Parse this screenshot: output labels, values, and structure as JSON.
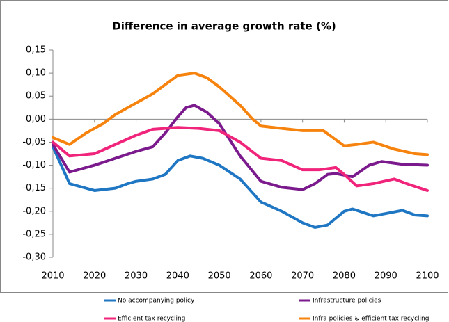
{
  "chart_data": {
    "type": "line",
    "title": "Difference in average growth rate (%)",
    "xlim": [
      2010,
      2100
    ],
    "xticks": [
      2010,
      2020,
      2030,
      2040,
      2050,
      2060,
      2070,
      2080,
      2090,
      2100
    ],
    "ylim": [
      -0.3,
      0.15
    ],
    "yticks": [
      {
        "value": -0.3,
        "label": "-0,30"
      },
      {
        "value": -0.25,
        "label": "-0,25"
      },
      {
        "value": -0.2,
        "label": "-0,20"
      },
      {
        "value": -0.15,
        "label": "-0,15"
      },
      {
        "value": -0.1,
        "label": "-0,10"
      },
      {
        "value": -0.05,
        "label": "-0,05"
      },
      {
        "value": 0,
        "label": "0,00"
      },
      {
        "value": 0.05,
        "label": "0,05"
      },
      {
        "value": 0.1,
        "label": "0,10"
      },
      {
        "value": 0.15,
        "label": "0,15"
      }
    ],
    "grid": false,
    "legend": "bottom",
    "series": [
      {
        "name": "No accompanying policy",
        "color": "#1f77c4",
        "x": [
          2010,
          2014,
          2020,
          2025,
          2028,
          2030,
          2034,
          2037,
          2040,
          2043,
          2046,
          2050,
          2055,
          2060,
          2065,
          2070,
          2073,
          2076,
          2080,
          2082,
          2087,
          2090,
          2094,
          2097,
          2100
        ],
        "values": [
          -0.06,
          -0.14,
          -0.155,
          -0.15,
          -0.14,
          -0.135,
          -0.13,
          -0.12,
          -0.09,
          -0.08,
          -0.085,
          -0.1,
          -0.13,
          -0.18,
          -0.2,
          -0.225,
          -0.235,
          -0.23,
          -0.2,
          -0.195,
          -0.21,
          -0.205,
          -0.198,
          -0.208,
          -0.21
        ]
      },
      {
        "name": "Infrastructure policies",
        "color": "#7b1a8c",
        "x": [
          2010,
          2014,
          2020,
          2025,
          2030,
          2034,
          2037,
          2040,
          2042,
          2044,
          2047,
          2050,
          2055,
          2060,
          2065,
          2070,
          2073,
          2076,
          2078,
          2082,
          2086,
          2089,
          2094,
          2100
        ],
        "values": [
          -0.055,
          -0.115,
          -0.1,
          -0.085,
          -0.07,
          -0.06,
          -0.03,
          0.005,
          0.025,
          0.03,
          0.015,
          -0.01,
          -0.08,
          -0.135,
          -0.148,
          -0.153,
          -0.14,
          -0.12,
          -0.118,
          -0.125,
          -0.1,
          -0.092,
          -0.098,
          -0.1
        ]
      },
      {
        "name": "Efficient tax recycling",
        "color": "#f0247a",
        "x": [
          2010,
          2014,
          2020,
          2025,
          2030,
          2034,
          2037,
          2040,
          2045,
          2050,
          2055,
          2060,
          2065,
          2070,
          2074,
          2078,
          2080,
          2083,
          2087,
          2092,
          2095,
          2100
        ],
        "values": [
          -0.05,
          -0.08,
          -0.075,
          -0.055,
          -0.035,
          -0.022,
          -0.02,
          -0.018,
          -0.02,
          -0.025,
          -0.05,
          -0.085,
          -0.09,
          -0.11,
          -0.11,
          -0.105,
          -0.12,
          -0.145,
          -0.14,
          -0.13,
          -0.14,
          -0.155
        ]
      },
      {
        "name": "Infra policies & efficient tax recycling",
        "color": "#f7830f",
        "x": [
          2010,
          2014,
          2018,
          2022,
          2025,
          2030,
          2034,
          2037,
          2040,
          2044,
          2047,
          2050,
          2055,
          2058,
          2060,
          2065,
          2070,
          2075,
          2080,
          2083,
          2087,
          2092,
          2097,
          2100
        ],
        "values": [
          -0.04,
          -0.055,
          -0.03,
          -0.01,
          0.01,
          0.035,
          0.055,
          0.075,
          0.095,
          0.1,
          0.09,
          0.07,
          0.03,
          0,
          -0.015,
          -0.02,
          -0.025,
          -0.025,
          -0.058,
          -0.055,
          -0.05,
          -0.065,
          -0.075,
          -0.077
        ]
      }
    ]
  }
}
